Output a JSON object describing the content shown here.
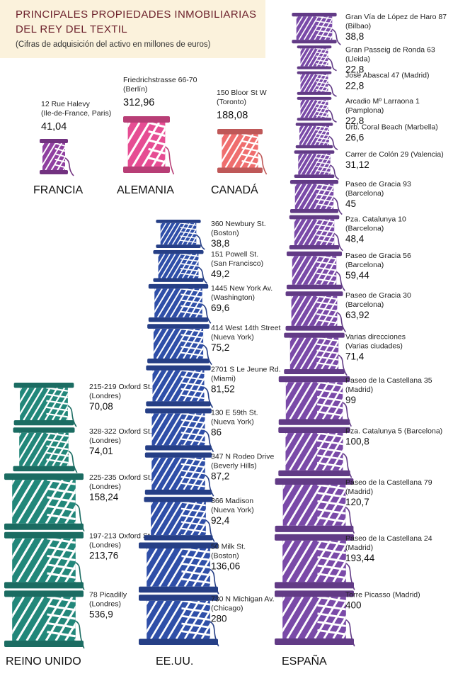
{
  "title_line1": "PRINCIPALES PROPIEDADES INMOBILIARIAS",
  "title_line2": "DEL REY DEL TEXTIL",
  "subtitle": "(Cifras de adquisición del activo en millones de euros)",
  "chart_data": {
    "type": "pictograph",
    "unit": "millones de euros",
    "groups": [
      {
        "country": "FRANCIA",
        "color": "#8f3fa0",
        "items": [
          {
            "name": "12 Rue Halevy",
            "location": "(Ile-de-France, Paris)",
            "value": 41.04,
            "value_label": "41,04"
          }
        ]
      },
      {
        "country": "ALEMANIA",
        "color": "#e64d93",
        "items": [
          {
            "name": "Friedrichstrasse 66-70",
            "location": "(Berlín)",
            "value": 312.96,
            "value_label": "312,96"
          }
        ]
      },
      {
        "country": "CANADÁ",
        "color": "#ef6e6e",
        "items": [
          {
            "name": "150 Bloor St W",
            "location": "(Toronto)",
            "value": 188.08,
            "value_label": "188,08"
          }
        ]
      },
      {
        "country": "REINO UNIDO",
        "color": "#22877a",
        "items": [
          {
            "name": "215-219 Oxford St.",
            "location": "(Londres)",
            "value": 70.08,
            "value_label": "70,08"
          },
          {
            "name": "328-322 Oxford St.",
            "location": "(Londres)",
            "value": 74.01,
            "value_label": "74,01"
          },
          {
            "name": "225-235 Oxford St.",
            "location": "(Londres)",
            "value": 158.24,
            "value_label": "158,24"
          },
          {
            "name": "197-213 Oxford St.",
            "location": "(Londres)",
            "value": 213.76,
            "value_label": "213,76"
          },
          {
            "name": "78 Picadilly",
            "location": "(Londres)",
            "value": 536.9,
            "value_label": "536,9"
          }
        ]
      },
      {
        "country": "EE.UU.",
        "color": "#2f4fa8",
        "items": [
          {
            "name": "360 Newbury St.",
            "location": "(Boston)",
            "value": 38.8,
            "value_label": "38,8"
          },
          {
            "name": "151 Powell St.",
            "location": "(San Francisco)",
            "value": 49.2,
            "value_label": "49,2"
          },
          {
            "name": "1445 New York Av.",
            "location": "(Washington)",
            "value": 69.6,
            "value_label": "69,6"
          },
          {
            "name": "414 West 14th Street",
            "location": "(Nueva York)",
            "value": 75.2,
            "value_label": "75,2"
          },
          {
            "name": "2701 S Le Jeune Rd.",
            "location": "(Miami)",
            "value": 81.52,
            "value_label": "81,52"
          },
          {
            "name": "130 E 59th St.",
            "location": "(Nueva York)",
            "value": 86,
            "value_label": "86"
          },
          {
            "name": "347 N Rodeo Drive",
            "location": "(Beverly Hills)",
            "value": 87.2,
            "value_label": "87,2"
          },
          {
            "name": "366 Madison",
            "location": "(Nueva York)",
            "value": 92.4,
            "value_label": "92,4"
          },
          {
            "name": "50 Milk St.",
            "location": "(Boston)",
            "value": 136.06,
            "value_label": "136,06"
          },
          {
            "name": "730 N Michigan Av.",
            "location": "(Chicago)",
            "value": 280,
            "value_label": "280"
          }
        ]
      },
      {
        "country": "ESPAÑA",
        "color": "#7a4aa8",
        "items": [
          {
            "name": "Gran Vía de López de Haro 87",
            "location": "(Bilbao)",
            "value": 38.8,
            "value_label": "38,8"
          },
          {
            "name": "Gran Passeig de Ronda 63",
            "location": "(Lleida)",
            "value": 22.8,
            "value_label": "22,8"
          },
          {
            "name": "José Abascal 47 (Madrid)",
            "location": "",
            "value": 22.8,
            "value_label": "22,8"
          },
          {
            "name": "Arcadio Mº Larraona 1",
            "location": "(Pamplona)",
            "value": 22.8,
            "value_label": "22,8"
          },
          {
            "name": "Urb. Coral Beach (Marbella)",
            "location": "",
            "value": 26.6,
            "value_label": "26,6"
          },
          {
            "name": "Carrer de Colón 29 (Valencia)",
            "location": "",
            "value": 31.12,
            "value_label": "31,12"
          },
          {
            "name": "Paseo de Gracia 93",
            "location": "(Barcelona)",
            "value": 45,
            "value_label": "45"
          },
          {
            "name": "Pza. Catalunya 10",
            "location": "(Barcelona)",
            "value": 48.4,
            "value_label": "48,4"
          },
          {
            "name": "Paseo de Gracia 56",
            "location": "(Barcelona)",
            "value": 59.44,
            "value_label": "59,44"
          },
          {
            "name": "Paseo de Gracia 30",
            "location": "(Barcelona)",
            "value": 63.92,
            "value_label": "63,92"
          },
          {
            "name": "Varias direcciones",
            "location": "(Varias ciudades)",
            "value": 71.4,
            "value_label": "71,4"
          },
          {
            "name": "Paseo de la Castellana 35",
            "location": "(Madrid)",
            "value": 99,
            "value_label": "99"
          },
          {
            "name": "Pza. Catalunya 5 (Barcelona)",
            "location": "",
            "value": 100.8,
            "value_label": "100,8"
          },
          {
            "name": "Paseo de la Castellana 79",
            "location": "(Madrid)",
            "value": 120.7,
            "value_label": "120,7"
          },
          {
            "name": "Paseo de la Castellana 24",
            "location": "(Madrid)",
            "value": 193.44,
            "value_label": "193,44"
          },
          {
            "name": "Torre Picasso (Madrid)",
            "location": "",
            "value": 400,
            "value_label": "400"
          }
        ]
      }
    ]
  }
}
